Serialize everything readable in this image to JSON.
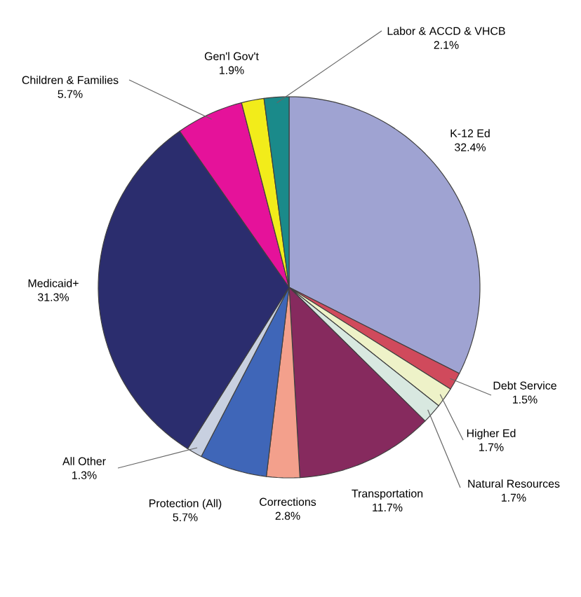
{
  "chart_data": {
    "type": "pie",
    "categories": [
      "K-12 Ed",
      "Debt Service",
      "Higher Ed",
      "Natural Resources",
      "Transportation",
      "Corrections",
      "Protection (All)",
      "All Other",
      "Medicaid+",
      "Children & Families",
      "Gen'l Gov't",
      "Labor & ACCD & VHCB"
    ],
    "values": [
      32.4,
      1.5,
      1.7,
      1.7,
      11.7,
      2.8,
      5.7,
      1.3,
      31.3,
      5.7,
      1.9,
      2.1
    ],
    "value_labels": [
      "32.4%",
      "1.5%",
      "1.7%",
      "1.7%",
      "11.7%",
      "2.8%",
      "5.7%",
      "1.3%",
      "31.3%",
      "5.7%",
      "1.9%",
      "2.1%"
    ],
    "colors": [
      "#9fa3d2",
      "#d04a5c",
      "#eef2c8",
      "#d8e8e0",
      "#862a5e",
      "#f3a08c",
      "#3f66b8",
      "#c8d0e0",
      "#2b2d6e",
      "#e5129a",
      "#f2ec1a",
      "#1a8a8a"
    ]
  }
}
